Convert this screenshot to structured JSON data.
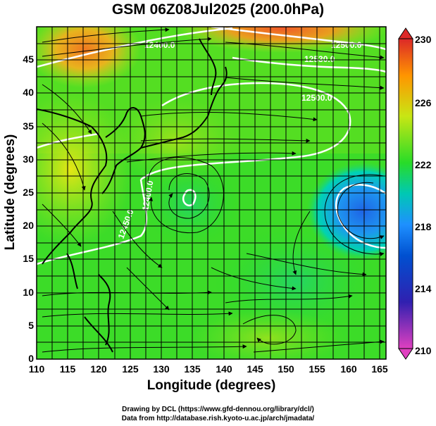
{
  "title": "GSM 06Z08Jul2025 (200.0hPa)",
  "axes": {
    "xlabel": "Longitude (degrees)",
    "ylabel": "Latitude  (degrees)",
    "xticks": [
      "110",
      "115",
      "120",
      "125",
      "130",
      "135",
      "140",
      "145",
      "150",
      "155",
      "160",
      "165"
    ],
    "yticks": [
      "0",
      "5",
      "10",
      "15",
      "20",
      "25",
      "30",
      "35",
      "40",
      "45"
    ]
  },
  "colorbar": {
    "ticks": [
      "210",
      "214",
      "218",
      "222",
      "226",
      "230"
    ],
    "colors": [
      "#e040c0",
      "#0000b4",
      "#1e90ff",
      "#00d2c8",
      "#22dc28",
      "#f0f000",
      "#ff8c00",
      "#dc2828"
    ]
  },
  "contours": [
    {
      "label": "12400.0"
    },
    {
      "label": "12500.0"
    },
    {
      "label": "12530.0"
    },
    {
      "label": "12500.0"
    },
    {
      "label": "12450.0"
    },
    {
      "label": "12400.0"
    }
  ],
  "credits": {
    "line1": "Drawing by DCL (https://www.gfd-dennou.org/library/dcl/)",
    "line2": "Data from http://database.rish.kyoto-u.ac.jp/arch/jmadata/"
  }
}
